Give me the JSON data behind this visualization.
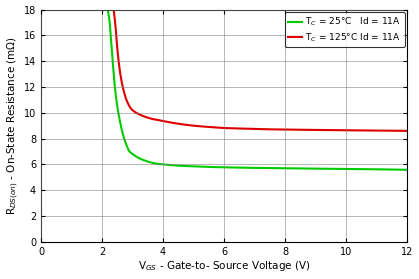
{
  "xlabel": "V$_{GS}$ - Gate-to- Source Voltage (V)",
  "ylabel": "R$_{DS(on)}$ - On-State Resistance (mΩ)",
  "xlim": [
    0,
    12
  ],
  "ylim": [
    0,
    18
  ],
  "xticks": [
    0,
    2,
    4,
    6,
    8,
    10,
    12
  ],
  "yticks": [
    0,
    2,
    4,
    6,
    8,
    10,
    12,
    14,
    16,
    18
  ],
  "legend1": "T$_C$ = 25°C   Id = 11A",
  "legend2": "T$_C$ = 125°C Id = 11A",
  "color_green": "#00CC00",
  "color_red": "#DD0000",
  "background_color": "#FFFFFF",
  "grid_color": "#808080",
  "green_vgs": [
    2.18,
    2.25,
    2.3,
    2.35,
    2.4,
    2.5,
    2.6,
    2.7,
    2.8,
    2.9,
    3.0,
    3.2,
    3.4,
    3.6,
    3.8,
    4.0,
    4.5,
    5.0,
    5.5,
    6.0,
    6.5,
    7.0,
    8.0,
    9.0,
    10.0,
    11.0,
    12.0
  ],
  "green_rds": [
    18.0,
    17.0,
    15.5,
    14.0,
    12.5,
    10.5,
    9.2,
    8.2,
    7.5,
    7.0,
    6.8,
    6.5,
    6.3,
    6.15,
    6.05,
    6.0,
    5.9,
    5.85,
    5.8,
    5.78,
    5.75,
    5.73,
    5.7,
    5.67,
    5.65,
    5.62,
    5.58
  ],
  "red_vgs": [
    2.38,
    2.45,
    2.5,
    2.6,
    2.7,
    2.8,
    2.9,
    3.0,
    3.2,
    3.4,
    3.6,
    3.8,
    4.0,
    4.5,
    5.0,
    5.5,
    6.0,
    6.5,
    7.0,
    8.0,
    9.0,
    10.0,
    11.0,
    12.0
  ],
  "red_rds": [
    18.0,
    16.5,
    15.0,
    13.0,
    11.8,
    11.0,
    10.5,
    10.2,
    9.9,
    9.7,
    9.55,
    9.45,
    9.35,
    9.15,
    9.0,
    8.9,
    8.82,
    8.78,
    8.74,
    8.7,
    8.67,
    8.64,
    8.62,
    8.6
  ]
}
